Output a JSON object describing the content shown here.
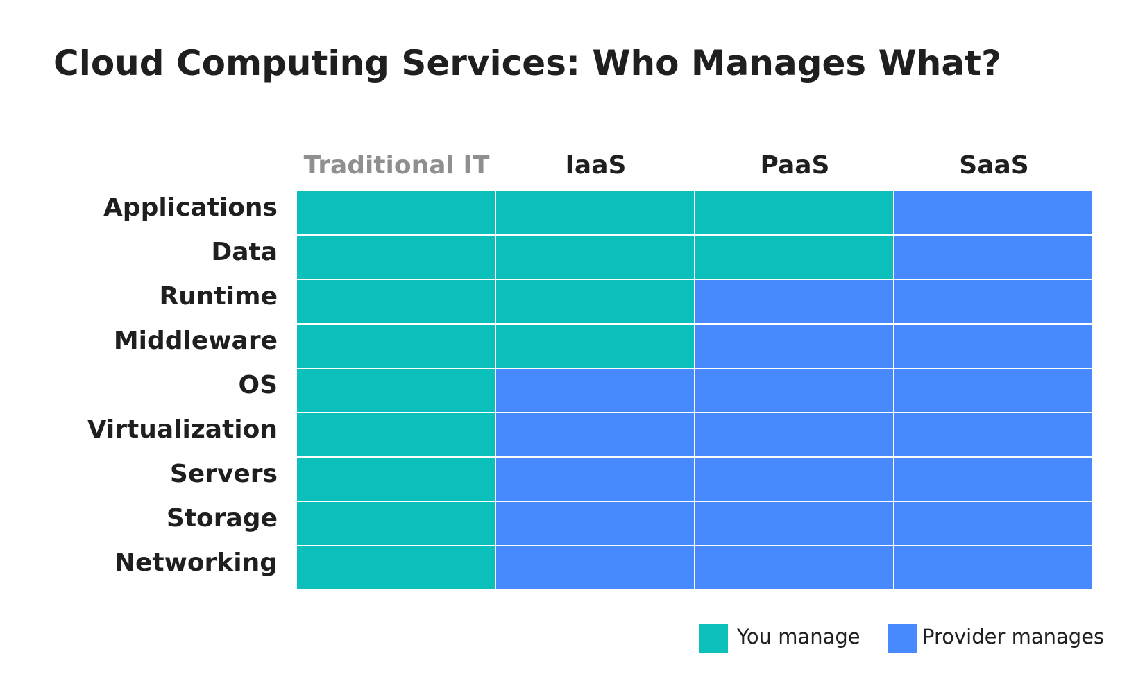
{
  "title": "Cloud Computing Services: Who Manages What?",
  "columns": [
    "Traditional IT",
    "IaaS",
    "PaaS",
    "SaaS"
  ],
  "rows": [
    "Applications",
    "Data",
    "Runtime",
    "Middleware",
    "OS",
    "Virtualization",
    "Servers",
    "Storage",
    "Networking"
  ],
  "legend": {
    "you_label": "You manage",
    "provider_label": "Provider manages"
  },
  "colors": {
    "you": "#0bbfbb",
    "provider": "#4889fd",
    "muted_header": "#8f8f8f",
    "text": "#1f1f1f"
  },
  "matrix": [
    [
      "you",
      "you",
      "you",
      "provider"
    ],
    [
      "you",
      "you",
      "you",
      "provider"
    ],
    [
      "you",
      "you",
      "provider",
      "provider"
    ],
    [
      "you",
      "you",
      "provider",
      "provider"
    ],
    [
      "you",
      "provider",
      "provider",
      "provider"
    ],
    [
      "you",
      "provider",
      "provider",
      "provider"
    ],
    [
      "you",
      "provider",
      "provider",
      "provider"
    ],
    [
      "you",
      "provider",
      "provider",
      "provider"
    ],
    [
      "you",
      "provider",
      "provider",
      "provider"
    ]
  ]
}
